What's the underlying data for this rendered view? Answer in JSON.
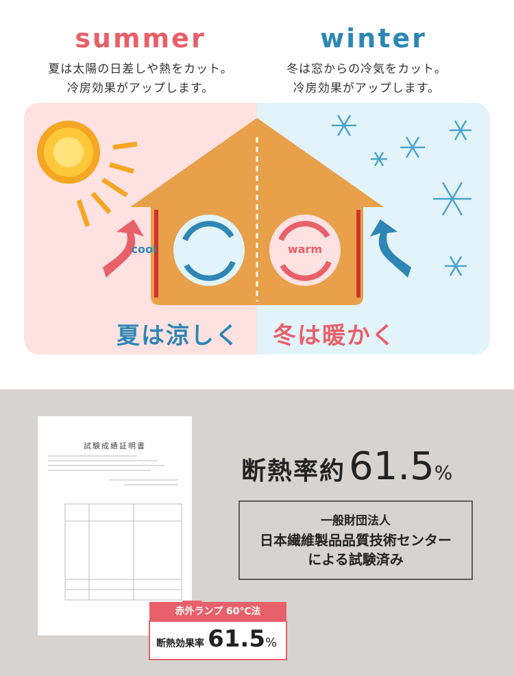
{
  "summer": {
    "heading": "summer",
    "lines": [
      "夏は太陽の日差しや熱をカット。",
      "冷房効果がアップします。"
    ]
  },
  "winter": {
    "heading": "winter",
    "lines": [
      "冬は窓からの冷気をカット。",
      "冷房効果がアップします。"
    ]
  },
  "house": {
    "cool": "cool",
    "warm": "warm",
    "summer_caption": "夏は涼しく",
    "winter_caption": "冬は暖かく"
  },
  "result": {
    "label": "断熱率約",
    "value": "61.5",
    "unit": "%"
  },
  "institute": {
    "lines": [
      "一般財団法人",
      "日本繊維製品品質技術センター",
      "による試験済み"
    ]
  },
  "certificate": {
    "title": "試験成績証明書"
  },
  "callout": {
    "method": "赤外ランプ 60℃法",
    "label": "断熱効果率",
    "value": "61.5",
    "unit": "%"
  }
}
